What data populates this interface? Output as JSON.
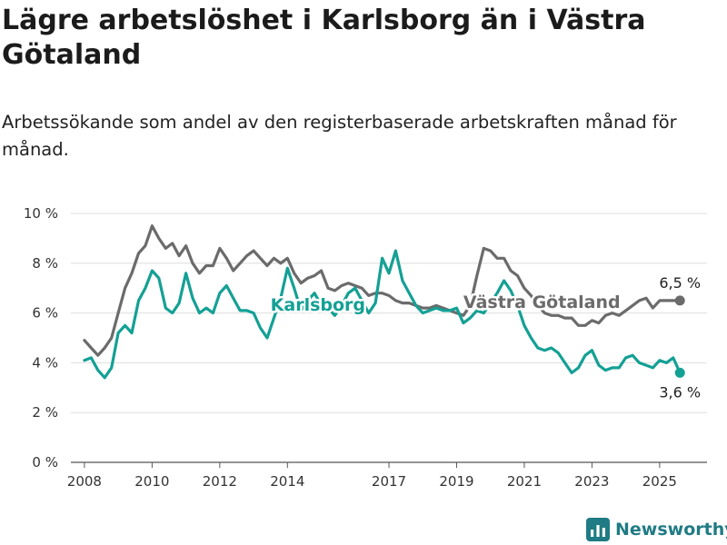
{
  "title": "Lägre arbetslöshet i Karlsborg än i Västra Götaland",
  "subtitle": "Arbetssökande som andel av den registerbaserade arbetskraften månad för månad.",
  "brand": {
    "name": "Newsworthy",
    "icon": "newsworthy-logo-icon",
    "color": "#1f7b84"
  },
  "chart_data": {
    "type": "line",
    "title": "Lägre arbetslöshet i Karlsborg än i Västra Götaland",
    "subtitle": "Arbetssökande som andel av den registerbaserade arbetskraften månad för månad.",
    "xlabel": "",
    "ylabel": "",
    "xlim": [
      2007.6,
      2026.4
    ],
    "ylim": [
      0,
      10
    ],
    "yticks": [
      0,
      2,
      4,
      6,
      8,
      10
    ],
    "ytick_labels": [
      "0 %",
      "2 %",
      "4 %",
      "6 %",
      "8 %",
      "10 %"
    ],
    "xticks": [
      2008,
      2010,
      2012,
      2014,
      2017,
      2019,
      2021,
      2023,
      2025
    ],
    "xtick_labels": [
      "2008",
      "2010",
      "2012",
      "2014",
      "2017",
      "2019",
      "2021",
      "2023",
      "2025"
    ],
    "grid": "horizontal",
    "legend": "inline labels on lines",
    "series": [
      {
        "name": "Västra Götaland",
        "color": "#6b6b6b",
        "end_label": "6,5 %",
        "x": [
          2008.0,
          2008.2,
          2008.4,
          2008.6,
          2008.8,
          2009.0,
          2009.2,
          2009.4,
          2009.6,
          2009.8,
          2010.0,
          2010.2,
          2010.4,
          2010.6,
          2010.8,
          2011.0,
          2011.2,
          2011.4,
          2011.6,
          2011.8,
          2012.0,
          2012.2,
          2012.4,
          2012.6,
          2012.8,
          2013.0,
          2013.2,
          2013.4,
          2013.6,
          2013.8,
          2014.0,
          2014.2,
          2014.4,
          2014.6,
          2014.8,
          2015.0,
          2015.2,
          2015.4,
          2015.6,
          2015.8,
          2016.0,
          2016.2,
          2016.4,
          2016.6,
          2016.8,
          2017.0,
          2017.2,
          2017.4,
          2017.6,
          2017.8,
          2018.0,
          2018.2,
          2018.4,
          2018.6,
          2018.8,
          2019.0,
          2019.2,
          2019.4,
          2019.6,
          2019.8,
          2020.0,
          2020.2,
          2020.4,
          2020.6,
          2020.8,
          2021.0,
          2021.2,
          2021.4,
          2021.6,
          2021.8,
          2022.0,
          2022.2,
          2022.4,
          2022.6,
          2022.8,
          2023.0,
          2023.2,
          2023.4,
          2023.6,
          2023.8,
          2024.0,
          2024.2,
          2024.4,
          2024.6,
          2024.8,
          2025.0,
          2025.2,
          2025.4,
          2025.6
        ],
        "values": [
          4.9,
          4.6,
          4.3,
          4.6,
          5.0,
          6.0,
          7.0,
          7.6,
          8.4,
          8.7,
          9.5,
          9.0,
          8.6,
          8.8,
          8.3,
          8.7,
          8.0,
          7.6,
          7.9,
          7.9,
          8.6,
          8.2,
          7.7,
          8.0,
          8.3,
          8.5,
          8.2,
          7.9,
          8.2,
          8.0,
          8.2,
          7.6,
          7.2,
          7.4,
          7.5,
          7.7,
          7.0,
          6.9,
          7.1,
          7.2,
          7.1,
          7.0,
          6.7,
          6.8,
          6.8,
          6.7,
          6.5,
          6.4,
          6.4,
          6.3,
          6.2,
          6.2,
          6.3,
          6.2,
          6.1,
          6.0,
          5.9,
          6.3,
          7.5,
          8.6,
          8.5,
          8.2,
          8.2,
          7.7,
          7.5,
          7.0,
          6.7,
          6.3,
          6.0,
          5.9,
          5.9,
          5.8,
          5.8,
          5.5,
          5.5,
          5.7,
          5.6,
          5.9,
          6.0,
          5.9,
          6.1,
          6.3,
          6.5,
          6.6,
          6.2,
          6.5,
          6.5,
          6.5,
          6.5
        ]
      },
      {
        "name": "Karlsborg",
        "color": "#14a095",
        "end_label": "3,6 %",
        "x": [
          2008.0,
          2008.2,
          2008.4,
          2008.6,
          2008.8,
          2009.0,
          2009.2,
          2009.4,
          2009.6,
          2009.8,
          2010.0,
          2010.2,
          2010.4,
          2010.6,
          2010.8,
          2011.0,
          2011.2,
          2011.4,
          2011.6,
          2011.8,
          2012.0,
          2012.2,
          2012.4,
          2012.6,
          2012.8,
          2013.0,
          2013.2,
          2013.4,
          2013.6,
          2013.8,
          2014.0,
          2014.2,
          2014.4,
          2014.6,
          2014.8,
          2015.0,
          2015.2,
          2015.4,
          2015.6,
          2015.8,
          2016.0,
          2016.2,
          2016.4,
          2016.6,
          2016.8,
          2017.0,
          2017.2,
          2017.4,
          2017.6,
          2017.8,
          2018.0,
          2018.2,
          2018.4,
          2018.6,
          2018.8,
          2019.0,
          2019.2,
          2019.4,
          2019.6,
          2019.8,
          2020.0,
          2020.2,
          2020.4,
          2020.6,
          2020.8,
          2021.0,
          2021.2,
          2021.4,
          2021.6,
          2021.8,
          2022.0,
          2022.2,
          2022.4,
          2022.6,
          2022.8,
          2023.0,
          2023.2,
          2023.4,
          2023.6,
          2023.8,
          2024.0,
          2024.2,
          2024.4,
          2024.6,
          2024.8,
          2025.0,
          2025.2,
          2025.4,
          2025.6
        ],
        "values": [
          4.1,
          4.2,
          3.7,
          3.4,
          3.8,
          5.2,
          5.5,
          5.2,
          6.5,
          7.0,
          7.7,
          7.4,
          6.2,
          6.0,
          6.4,
          7.6,
          6.6,
          6.0,
          6.2,
          6.0,
          6.8,
          7.1,
          6.6,
          6.1,
          6.1,
          6.0,
          5.4,
          5.0,
          5.8,
          6.6,
          7.8,
          7.0,
          6.1,
          6.5,
          6.8,
          6.3,
          6.2,
          5.9,
          6.3,
          6.8,
          7.0,
          6.5,
          6.0,
          6.4,
          8.2,
          7.6,
          8.5,
          7.3,
          6.8,
          6.3,
          6.0,
          6.1,
          6.2,
          6.1,
          6.1,
          6.2,
          5.6,
          5.8,
          6.1,
          6.0,
          6.4,
          6.8,
          7.3,
          6.9,
          6.3,
          5.5,
          5.0,
          4.6,
          4.5,
          4.6,
          4.4,
          4.0,
          3.6,
          3.8,
          4.3,
          4.5,
          3.9,
          3.7,
          3.8,
          3.8,
          4.2,
          4.3,
          4.0,
          3.9,
          3.8,
          4.1,
          4.0,
          4.2,
          3.6
        ]
      }
    ],
    "inline_labels": [
      {
        "series": "Karlsborg",
        "x": 2013.5,
        "y": 6.1
      },
      {
        "series": "Västra Götaland",
        "x": 2019.2,
        "y": 6.2
      }
    ]
  }
}
